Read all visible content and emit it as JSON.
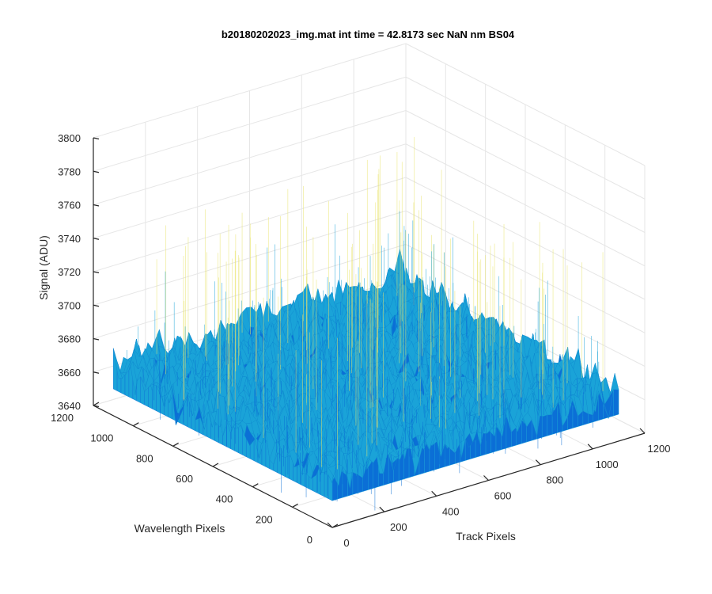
{
  "chart_data": {
    "type": "surface",
    "title": "b20180202023_img.mat int time = 42.8173 sec  NaN nm BS04",
    "xlabel": "Track Pixels",
    "ylabel": "Wavelength Pixels",
    "zlabel": "Signal (ADU)",
    "xlim": [
      0,
      1200
    ],
    "ylim": [
      0,
      1200
    ],
    "zlim": [
      3640,
      3800
    ],
    "x_ticks": [
      "0",
      "200",
      "400",
      "600",
      "800",
      "1000",
      "1200"
    ],
    "y_ticks": [
      "0",
      "200",
      "400",
      "600",
      "800",
      "1000",
      "1200"
    ],
    "z_ticks": [
      "3640",
      "3660",
      "3680",
      "3700",
      "3720",
      "3740",
      "3760",
      "3780",
      "3800"
    ],
    "surface": {
      "x_range": [
        0,
        1100
      ],
      "y_range": [
        0,
        1100
      ],
      "mean_signal": 3670,
      "noise_spread": 20,
      "max_spike": 3770,
      "min_spike": 3640
    },
    "grid": true,
    "colormap": "parula",
    "colors": {
      "surface_low": "#0b6fd6",
      "surface_mid": "#1aa3d8",
      "surface_high": "#7fc9a8",
      "spike": "#e9e46a"
    }
  }
}
